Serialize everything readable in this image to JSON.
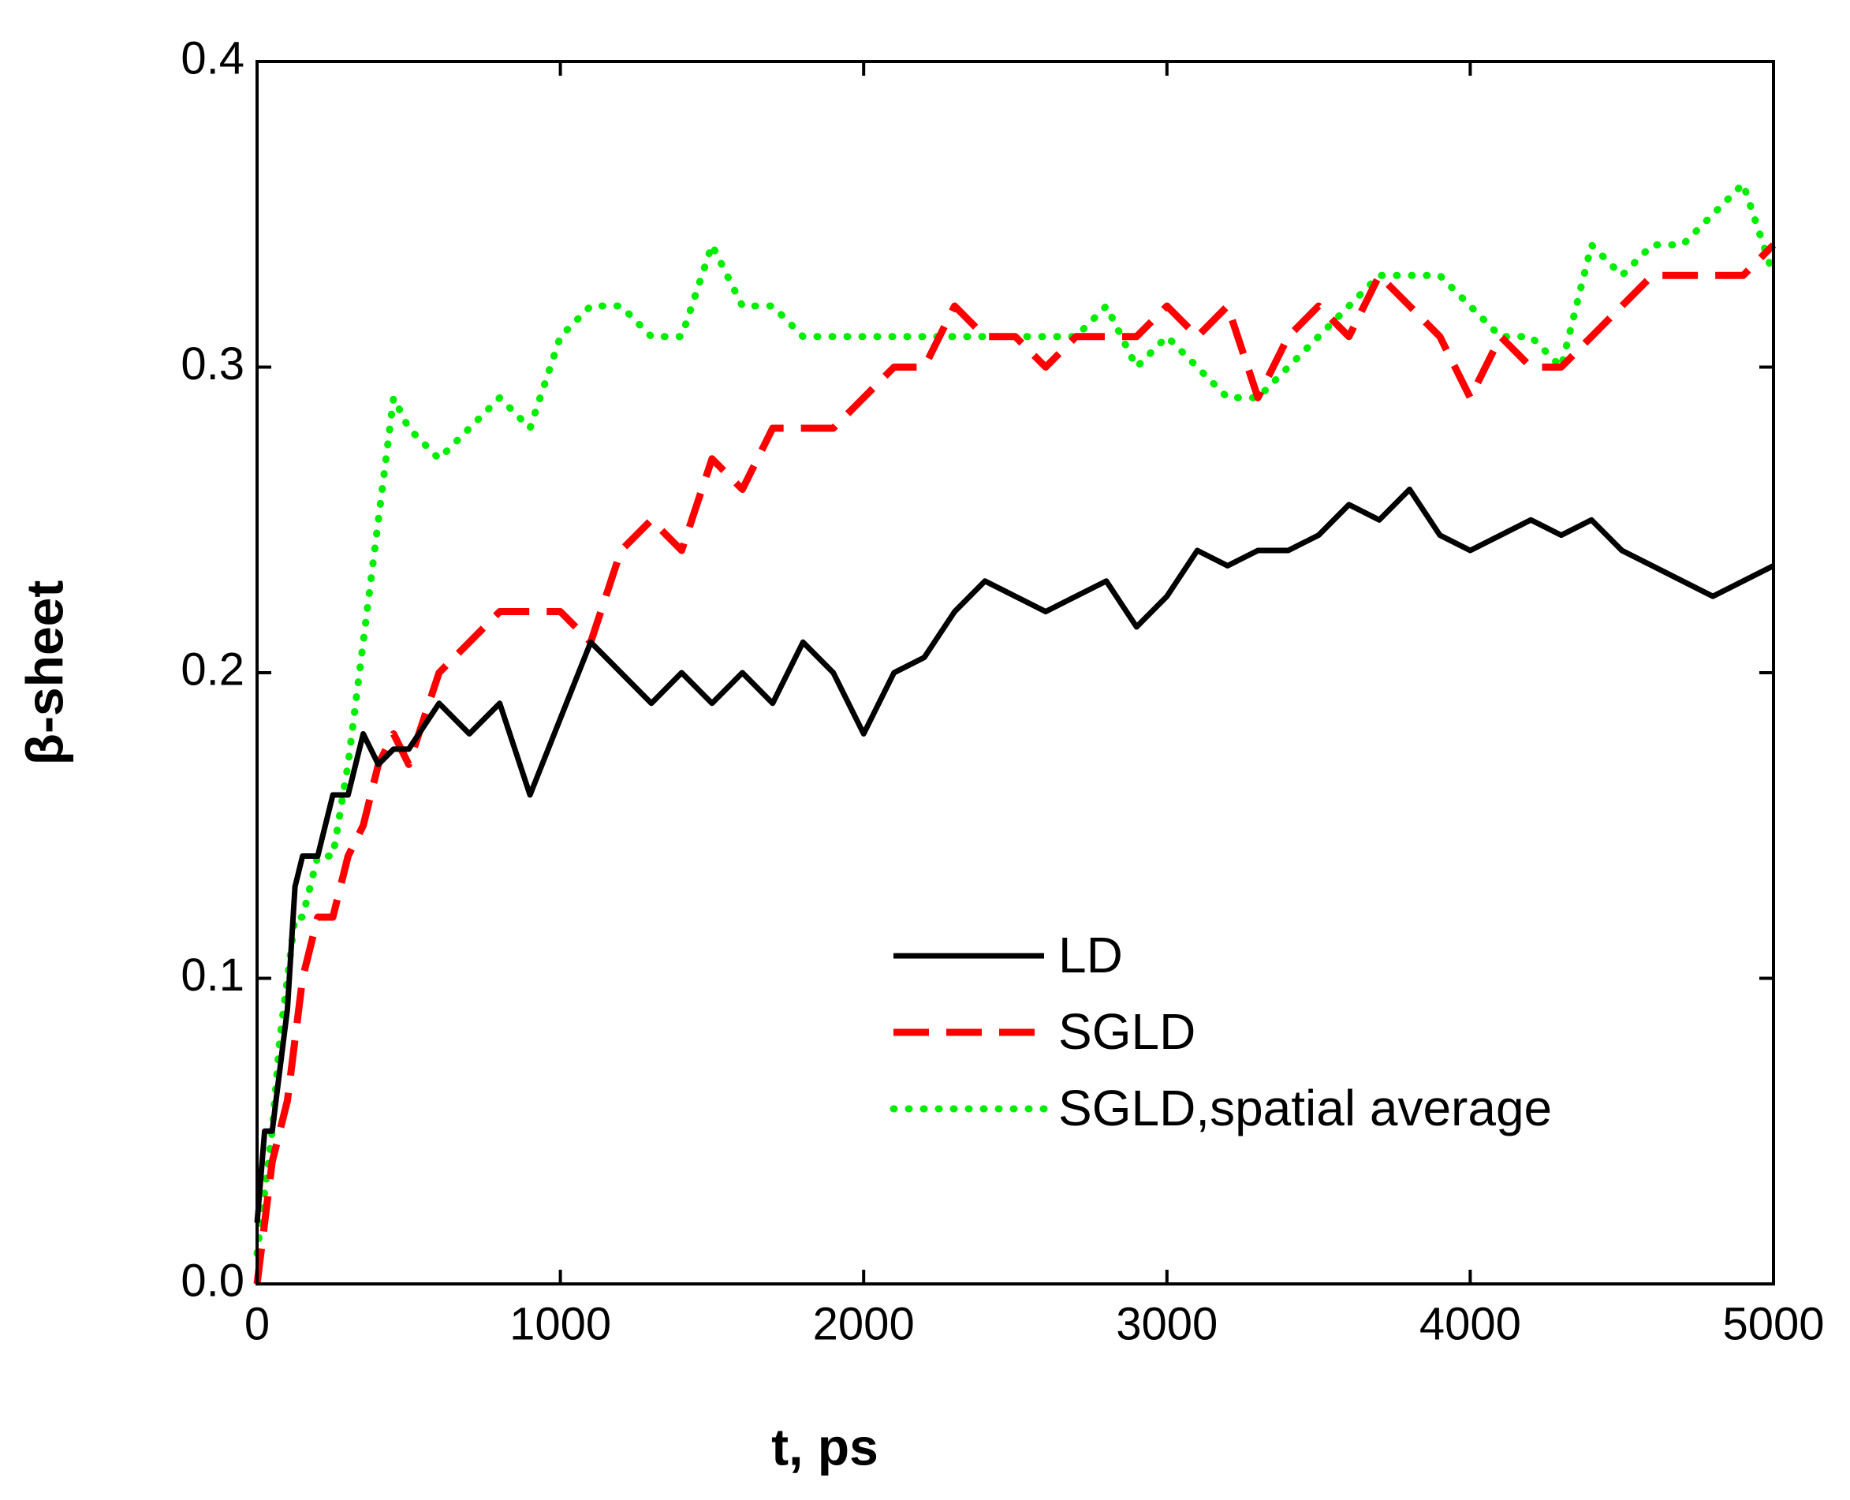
{
  "chart_data": {
    "type": "line",
    "xlabel": "t, ps",
    "ylabel": "β-sheet",
    "x": [
      0,
      25,
      50,
      75,
      100,
      125,
      150,
      200,
      250,
      300,
      350,
      400,
      450,
      500,
      600,
      700,
      800,
      900,
      1000,
      1100,
      1200,
      1300,
      1400,
      1500,
      1600,
      1700,
      1800,
      1900,
      2000,
      2100,
      2200,
      2300,
      2400,
      2500,
      2600,
      2700,
      2800,
      2900,
      3000,
      3100,
      3200,
      3300,
      3400,
      3500,
      3600,
      3700,
      3800,
      3900,
      4000,
      4100,
      4200,
      4300,
      4400,
      4500,
      4600,
      4700,
      4800,
      4900,
      5000
    ],
    "series": [
      {
        "name": "LD",
        "color": "#000000",
        "style": "solid",
        "values": [
          0.02,
          0.05,
          0.05,
          0.07,
          0.09,
          0.13,
          0.14,
          0.14,
          0.16,
          0.16,
          0.18,
          0.17,
          0.175,
          0.175,
          0.19,
          0.18,
          0.19,
          0.16,
          0.185,
          0.21,
          0.2,
          0.19,
          0.2,
          0.19,
          0.2,
          0.19,
          0.21,
          0.2,
          0.18,
          0.2,
          0.205,
          0.22,
          0.23,
          0.225,
          0.22,
          0.225,
          0.23,
          0.215,
          0.225,
          0.24,
          0.235,
          0.24,
          0.24,
          0.245,
          0.255,
          0.25,
          0.26,
          0.245,
          0.24,
          0.245,
          0.25,
          0.245,
          0.25,
          0.24,
          0.235,
          0.23,
          0.225,
          0.23,
          0.235
        ]
      },
      {
        "name": "SGLD",
        "color": "#ff0000",
        "style": "dash",
        "values": [
          0.0,
          0.02,
          0.04,
          0.05,
          0.06,
          0.08,
          0.1,
          0.12,
          0.12,
          0.14,
          0.15,
          0.17,
          0.18,
          0.17,
          0.2,
          0.21,
          0.22,
          0.22,
          0.22,
          0.21,
          0.24,
          0.25,
          0.24,
          0.27,
          0.26,
          0.28,
          0.28,
          0.28,
          0.29,
          0.3,
          0.3,
          0.32,
          0.31,
          0.31,
          0.3,
          0.31,
          0.31,
          0.31,
          0.32,
          0.31,
          0.32,
          0.29,
          0.31,
          0.32,
          0.31,
          0.33,
          0.32,
          0.31,
          0.29,
          0.31,
          0.3,
          0.3,
          0.31,
          0.32,
          0.33,
          0.33,
          0.33,
          0.33,
          0.34
        ]
      },
      {
        "name": "SGLD,spatial average",
        "color": "#00ee00",
        "style": "dot",
        "values": [
          0.01,
          0.03,
          0.05,
          0.08,
          0.1,
          0.12,
          0.12,
          0.14,
          0.14,
          0.17,
          0.21,
          0.25,
          0.29,
          0.28,
          0.27,
          0.28,
          0.29,
          0.28,
          0.31,
          0.32,
          0.32,
          0.31,
          0.31,
          0.34,
          0.32,
          0.32,
          0.31,
          0.31,
          0.31,
          0.31,
          0.31,
          0.31,
          0.31,
          0.31,
          0.31,
          0.31,
          0.32,
          0.3,
          0.31,
          0.3,
          0.29,
          0.29,
          0.3,
          0.31,
          0.32,
          0.33,
          0.33,
          0.33,
          0.32,
          0.31,
          0.31,
          0.3,
          0.34,
          0.33,
          0.34,
          0.34,
          0.35,
          0.36,
          0.33
        ]
      }
    ],
    "xlim": [
      0,
      5000
    ],
    "xticks": [
      0,
      1000,
      2000,
      3000,
      4000,
      5000
    ],
    "ylim": [
      0,
      0.4
    ],
    "yticks": [
      {
        "value": 0,
        "label": "0.0"
      },
      0.1,
      0.2,
      0.3,
      0.4
    ],
    "grid": false
  }
}
